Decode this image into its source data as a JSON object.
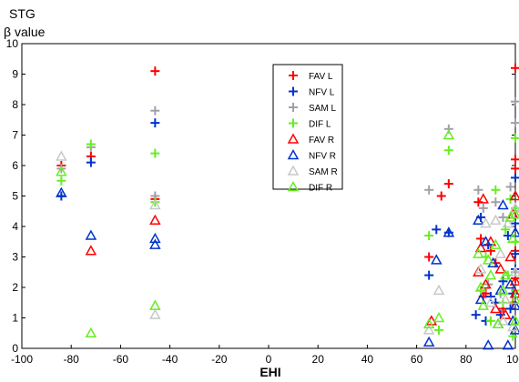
{
  "chart_data": {
    "type": "scatter",
    "title_lines": [
      "STG",
      "β value"
    ],
    "xlabel": "EHI",
    "ylabel": "",
    "xlim": [
      -100,
      100
    ],
    "ylim": [
      0,
      10
    ],
    "xticks": [
      -100,
      -80,
      -60,
      -40,
      -20,
      0,
      20,
      40,
      60,
      80,
      100
    ],
    "yticks": [
      0,
      1,
      2,
      3,
      4,
      5,
      6,
      7,
      8,
      9,
      10
    ],
    "grid": false,
    "legend_position": "top-center",
    "series": [
      {
        "name": "FAV L",
        "marker": "plus",
        "color": "#ff0000",
        "points": [
          [
            -84,
            6.0
          ],
          [
            -72,
            6.3
          ],
          [
            -46,
            9.1
          ],
          [
            -46,
            4.9
          ],
          [
            65,
            3.0
          ],
          [
            70,
            5.0
          ],
          [
            73,
            5.4
          ],
          [
            85,
            4.8
          ],
          [
            86,
            3.6
          ],
          [
            87,
            1.7
          ],
          [
            88,
            1.8
          ],
          [
            90,
            3.2
          ],
          [
            92,
            2.8
          ],
          [
            95,
            1.3
          ],
          [
            99,
            1.5
          ],
          [
            100,
            5.9
          ],
          [
            100,
            6.2
          ],
          [
            100,
            9.2
          ],
          [
            100,
            3.2
          ],
          [
            100,
            2.3
          ]
        ]
      },
      {
        "name": "NFV L",
        "marker": "plus",
        "color": "#0033cc",
        "points": [
          [
            -84,
            5.0
          ],
          [
            -72,
            6.1
          ],
          [
            -46,
            7.4
          ],
          [
            65,
            2.4
          ],
          [
            68,
            3.9
          ],
          [
            73,
            3.8
          ],
          [
            84,
            1.1
          ],
          [
            86,
            4.3
          ],
          [
            88,
            0.9
          ],
          [
            89,
            3.4
          ],
          [
            90,
            1.7
          ],
          [
            92,
            1.5
          ],
          [
            94,
            1.1
          ],
          [
            95,
            2.2
          ],
          [
            97,
            3.7
          ],
          [
            98,
            1.3
          ],
          [
            99,
            1.8
          ],
          [
            100,
            4.1
          ],
          [
            100,
            5.6
          ],
          [
            100,
            3.1
          ],
          [
            100,
            2.6
          ]
        ]
      },
      {
        "name": "SAM L",
        "marker": "plus",
        "color": "#a0a0a8",
        "points": [
          [
            -84,
            5.9
          ],
          [
            -72,
            6.6
          ],
          [
            -46,
            7.8
          ],
          [
            -46,
            5.0
          ],
          [
            65,
            5.2
          ],
          [
            73,
            7.2
          ],
          [
            85,
            5.2
          ],
          [
            87,
            4.6
          ],
          [
            89,
            2.1
          ],
          [
            92,
            4.8
          ],
          [
            94,
            1.8
          ],
          [
            95,
            4.3
          ],
          [
            98,
            5.3
          ],
          [
            100,
            8.1
          ],
          [
            100,
            7.4
          ],
          [
            100,
            4.5
          ],
          [
            100,
            2.5
          ]
        ]
      },
      {
        "name": "DIF L",
        "marker": "plus",
        "color": "#66ee22",
        "points": [
          [
            -84,
            5.5
          ],
          [
            -72,
            6.7
          ],
          [
            -46,
            6.4
          ],
          [
            -46,
            4.8
          ],
          [
            65,
            3.7
          ],
          [
            69,
            0.6
          ],
          [
            73,
            6.5
          ],
          [
            86,
            1.9
          ],
          [
            88,
            3.0
          ],
          [
            90,
            0.9
          ],
          [
            92,
            5.2
          ],
          [
            95,
            1.5
          ],
          [
            96,
            3.9
          ],
          [
            97,
            2.4
          ],
          [
            98,
            4.9
          ],
          [
            99,
            0.4
          ],
          [
            100,
            4.6
          ],
          [
            100,
            3.5
          ],
          [
            100,
            1.9
          ],
          [
            100,
            6.9
          ]
        ]
      },
      {
        "name": "FAV R",
        "marker": "triangle",
        "color": "#ff0000",
        "points": [
          [
            -72,
            3.2
          ],
          [
            -46,
            4.2
          ],
          [
            66,
            0.9
          ],
          [
            85,
            2.5
          ],
          [
            86,
            3.3
          ],
          [
            87,
            4.9
          ],
          [
            88,
            2.1
          ],
          [
            90,
            3.5
          ],
          [
            92,
            1.3
          ],
          [
            94,
            2.6
          ],
          [
            96,
            1.1
          ],
          [
            98,
            3.0
          ],
          [
            99,
            4.4
          ],
          [
            100,
            2.2
          ],
          [
            100,
            5.0
          ],
          [
            100,
            1.8
          ]
        ]
      },
      {
        "name": "NFV R",
        "marker": "triangle",
        "color": "#0033cc",
        "points": [
          [
            -84,
            5.1
          ],
          [
            -72,
            3.7
          ],
          [
            -46,
            3.6
          ],
          [
            -46,
            3.4
          ],
          [
            65,
            0.2
          ],
          [
            68,
            2.9
          ],
          [
            73,
            3.8
          ],
          [
            85,
            4.2
          ],
          [
            86,
            1.6
          ],
          [
            88,
            3.5
          ],
          [
            89,
            0.1
          ],
          [
            91,
            2.8
          ],
          [
            93,
            0.8
          ],
          [
            94,
            1.9
          ],
          [
            95,
            4.7
          ],
          [
            97,
            0.1
          ],
          [
            98,
            2.1
          ],
          [
            99,
            0.9
          ],
          [
            100,
            3.8
          ],
          [
            100,
            1.4
          ],
          [
            100,
            0.6
          ]
        ]
      },
      {
        "name": "SAM R",
        "marker": "triangle",
        "color": "#c8c8c8",
        "points": [
          [
            -84,
            6.3
          ],
          [
            -46,
            1.1
          ],
          [
            -46,
            4.7
          ],
          [
            65,
            0.6
          ],
          [
            69,
            1.9
          ],
          [
            86,
            2.6
          ],
          [
            88,
            4.1
          ],
          [
            90,
            1.5
          ],
          [
            92,
            4.2
          ],
          [
            94,
            3.1
          ],
          [
            95,
            0.9
          ],
          [
            96,
            1.6
          ],
          [
            97,
            4.1
          ],
          [
            99,
            0.7
          ],
          [
            100,
            2.5
          ],
          [
            100,
            4.6
          ]
        ]
      },
      {
        "name": "DIF R",
        "marker": "triangle",
        "color": "#66ee22",
        "points": [
          [
            -84,
            5.8
          ],
          [
            -72,
            0.5
          ],
          [
            -46,
            1.4
          ],
          [
            65,
            0.8
          ],
          [
            69,
            1.0
          ],
          [
            73,
            7.0
          ],
          [
            85,
            3.1
          ],
          [
            86,
            2.0
          ],
          [
            87,
            1.4
          ],
          [
            89,
            2.9
          ],
          [
            90,
            2.4
          ],
          [
            92,
            3.4
          ],
          [
            93,
            0.8
          ],
          [
            95,
            1.9
          ],
          [
            96,
            2.4
          ],
          [
            98,
            4.3
          ],
          [
            99,
            3.6
          ],
          [
            100,
            1.6
          ],
          [
            100,
            4.4
          ],
          [
            100,
            0.9
          ]
        ]
      }
    ]
  }
}
